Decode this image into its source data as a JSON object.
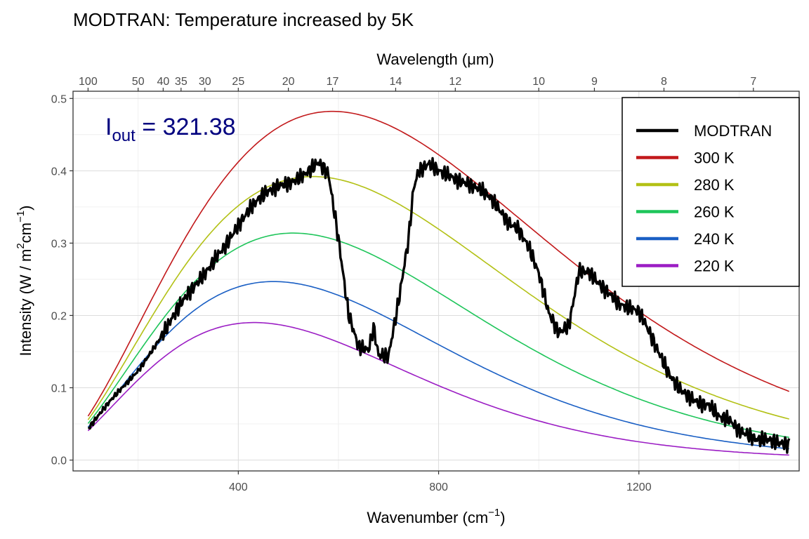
{
  "chart_data": {
    "type": "line",
    "title": "MODTRAN: Temperature increased by 5K",
    "xlabel": "Wavenumber (cm",
    "xlabel_sup": "−1",
    "xlabel_close": ")",
    "ylabel": "Intensity (W / m",
    "ylabel_sup1": "2",
    "ylabel_mid": "cm",
    "ylabel_sup2": "−1",
    "ylabel_close": ")",
    "top_axis_label": "Wavelength (μm)",
    "xlim": [
      70,
      1520
    ],
    "ylim": [
      -0.015,
      0.51
    ],
    "x_ticks": [
      400,
      800,
      1200
    ],
    "x_tick_labels": [
      "400",
      "800",
      "1200"
    ],
    "y_ticks": [
      0.0,
      0.1,
      0.2,
      0.3,
      0.4,
      0.5
    ],
    "y_tick_labels": [
      "0.0",
      "0.1",
      "0.2",
      "0.3",
      "0.4",
      "0.5"
    ],
    "top_ticks_um": [
      100,
      50,
      40,
      35,
      30,
      25,
      20,
      17,
      14,
      12,
      10,
      9,
      8,
      7
    ],
    "top_tick_labels": [
      "100",
      "50",
      "40",
      "35",
      "30",
      "25",
      "20",
      "17",
      "14",
      "12",
      "10",
      "9",
      "8",
      "7"
    ],
    "grid": true,
    "legend_position": "top-right",
    "legend": [
      {
        "name": "MODTRAN",
        "color": "#000000"
      },
      {
        "name": "300 K",
        "color": "#c2191b"
      },
      {
        "name": "280 K",
        "color": "#b3c116"
      },
      {
        "name": "260 K",
        "color": "#1ec55a"
      },
      {
        "name": "240 K",
        "color": "#1a5fc4"
      },
      {
        "name": "220 K",
        "color": "#9b1dc4"
      }
    ],
    "series": [
      {
        "name": "MODTRAN",
        "color": "#000000",
        "x": [
          100,
          150,
          200,
          240,
          280,
          320,
          360,
          400,
          440,
          480,
          520,
          560,
          580,
          600,
          620,
          640,
          660,
          670,
          680,
          700,
          720,
          740,
          750,
          760,
          780,
          800,
          820,
          840,
          860,
          880,
          900,
          920,
          940,
          960,
          980,
          1000,
          1020,
          1040,
          1060,
          1080,
          1100,
          1120,
          1140,
          1160,
          1180,
          1200,
          1220,
          1240,
          1260,
          1280,
          1300,
          1320,
          1340,
          1360,
          1380,
          1400,
          1420,
          1440,
          1460,
          1480,
          1500
        ],
        "y": [
          0.043,
          0.085,
          0.125,
          0.165,
          0.205,
          0.245,
          0.29,
          0.325,
          0.355,
          0.38,
          0.395,
          0.41,
          0.39,
          0.3,
          0.2,
          0.16,
          0.158,
          0.19,
          0.15,
          0.145,
          0.215,
          0.3,
          0.37,
          0.395,
          0.41,
          0.405,
          0.4,
          0.39,
          0.38,
          0.37,
          0.36,
          0.345,
          0.33,
          0.325,
          0.3,
          0.26,
          0.2,
          0.17,
          0.18,
          0.26,
          0.265,
          0.25,
          0.235,
          0.215,
          0.205,
          0.2,
          0.175,
          0.15,
          0.125,
          0.105,
          0.09,
          0.075,
          0.07,
          0.055,
          0.055,
          0.045,
          0.04,
          0.032,
          0.028,
          0.022,
          0.02
        ]
      },
      {
        "name": "300 K",
        "color": "#c2191b",
        "temperature": 300
      },
      {
        "name": "280 K",
        "color": "#b3c116",
        "temperature": 280
      },
      {
        "name": "260 K",
        "color": "#1ec55a",
        "temperature": 260
      },
      {
        "name": "240 K",
        "color": "#1a5fc4",
        "temperature": 240
      },
      {
        "name": "220 K",
        "color": "#9b1dc4",
        "temperature": 220
      }
    ],
    "planck_x_range": [
      100,
      1500
    ],
    "annotation": {
      "label": "I",
      "subscript": "out",
      "equals": " = ",
      "value": "321.38",
      "color": "#00007f"
    }
  }
}
